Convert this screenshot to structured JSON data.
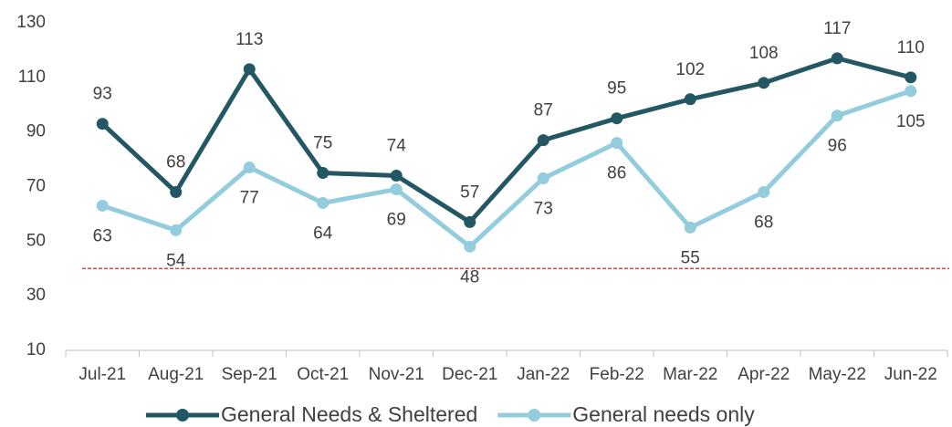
{
  "chart_data": {
    "type": "line",
    "categories": [
      "Jul-21",
      "Aug-21",
      "Sep-21",
      "Oct-21",
      "Nov-21",
      "Dec-21",
      "Jan-22",
      "Feb-22",
      "Mar-22",
      "Apr-22",
      "May-22",
      "Jun-22"
    ],
    "series": [
      {
        "name": "General Needs & Sheltered",
        "color": "#225763",
        "values": [
          93,
          68,
          113,
          75,
          74,
          57,
          87,
          95,
          102,
          108,
          117,
          110
        ],
        "label_side": "above"
      },
      {
        "name": "General needs only",
        "color": "#93cddd",
        "values": [
          63,
          54,
          77,
          64,
          69,
          48,
          73,
          86,
          55,
          68,
          96,
          105
        ],
        "label_side": "below"
      }
    ],
    "ylim": [
      10,
      130
    ],
    "yticks": [
      10,
      30,
      50,
      70,
      90,
      110,
      130
    ],
    "reference_line": {
      "value": 40,
      "color": "#e02020"
    },
    "grid": false,
    "legend": "bottom"
  }
}
